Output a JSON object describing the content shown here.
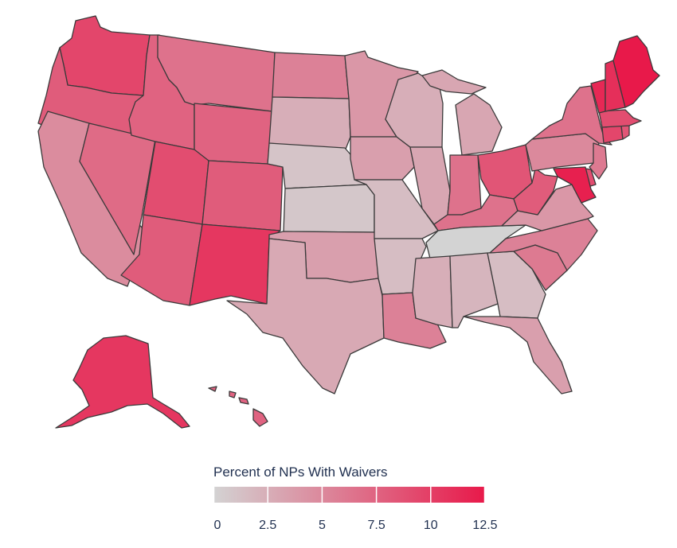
{
  "colors": {
    "low": "#d3d3d3",
    "high": "#e8194a",
    "border": "#3a3a3a"
  },
  "legend": {
    "title": "Percent of NPs With Waivers",
    "min": 0,
    "max": 12.5,
    "ticks": [
      "0",
      "2.5",
      "5",
      "7.5",
      "10",
      "12.5"
    ]
  },
  "states": [
    {
      "id": "WA",
      "value": 9.5
    },
    {
      "id": "OR",
      "value": 8.0
    },
    {
      "id": "CA",
      "value": 4.8
    },
    {
      "id": "NV",
      "value": 7.0
    },
    {
      "id": "ID",
      "value": 7.5
    },
    {
      "id": "MT",
      "value": 6.5
    },
    {
      "id": "WY",
      "value": 7.5
    },
    {
      "id": "UT",
      "value": 9.0
    },
    {
      "id": "AZ",
      "value": 8.0
    },
    {
      "id": "CO",
      "value": 8.0
    },
    {
      "id": "NM",
      "value": 10.5
    },
    {
      "id": "ND",
      "value": 5.5
    },
    {
      "id": "SD",
      "value": 2.5
    },
    {
      "id": "NE",
      "value": 1.0
    },
    {
      "id": "KS",
      "value": 0.8
    },
    {
      "id": "OK",
      "value": 3.5
    },
    {
      "id": "TX",
      "value": 2.8
    },
    {
      "id": "MN",
      "value": 4.0
    },
    {
      "id": "IA",
      "value": 3.5
    },
    {
      "id": "MO",
      "value": 1.5
    },
    {
      "id": "AR",
      "value": 1.5
    },
    {
      "id": "LA",
      "value": 5.5
    },
    {
      "id": "WI",
      "value": 2.5
    },
    {
      "id": "IL",
      "value": 3.0
    },
    {
      "id": "MI",
      "value": 3.0
    },
    {
      "id": "IN",
      "value": 6.5
    },
    {
      "id": "OH",
      "value": 8.5
    },
    {
      "id": "KY",
      "value": 6.5
    },
    {
      "id": "TN",
      "value": 0.0
    },
    {
      "id": "MS",
      "value": 2.5
    },
    {
      "id": "AL",
      "value": 2.0
    },
    {
      "id": "GA",
      "value": 1.5
    },
    {
      "id": "FL",
      "value": 3.5
    },
    {
      "id": "SC",
      "value": 6.0
    },
    {
      "id": "NC",
      "value": 5.5
    },
    {
      "id": "VA",
      "value": 4.0
    },
    {
      "id": "WV",
      "value": 8.0
    },
    {
      "id": "PA",
      "value": 5.0
    },
    {
      "id": "NY",
      "value": 6.5
    },
    {
      "id": "VT",
      "value": 11.5
    },
    {
      "id": "NH",
      "value": 11.0
    },
    {
      "id": "ME",
      "value": 12.5
    },
    {
      "id": "MA",
      "value": 9.0
    },
    {
      "id": "CT",
      "value": 9.5
    },
    {
      "id": "RI",
      "value": 8.5
    },
    {
      "id": "NJ",
      "value": 6.0
    },
    {
      "id": "DE",
      "value": 9.0
    },
    {
      "id": "MD",
      "value": 12.0
    },
    {
      "id": "AK",
      "value": 10.5
    },
    {
      "id": "HI",
      "value": 7.5
    }
  ]
}
